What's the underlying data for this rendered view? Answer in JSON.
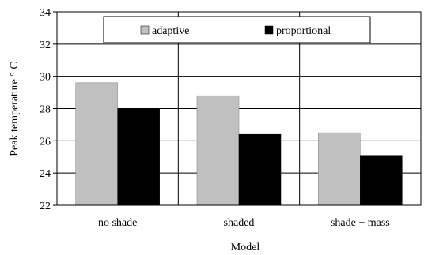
{
  "chart_data": {
    "type": "bar",
    "categories": [
      "no shade",
      "shaded",
      "shade + mass"
    ],
    "series": [
      {
        "name": "adaptive",
        "color": "#c0c0c0",
        "values": [
          29.6,
          28.8,
          26.5
        ]
      },
      {
        "name": "proportional",
        "color": "#000000",
        "values": [
          28.0,
          26.4,
          25.1
        ]
      }
    ],
    "xlabel": "Model",
    "ylabel": "Peak temperature ° C",
    "ylim": [
      22,
      34
    ],
    "yticks": [
      "22",
      "24",
      "26",
      "28",
      "30",
      "32",
      "34"
    ],
    "grid": {
      "horizontal": true,
      "vertical_separators": true
    },
    "legend_position": "top-center"
  }
}
